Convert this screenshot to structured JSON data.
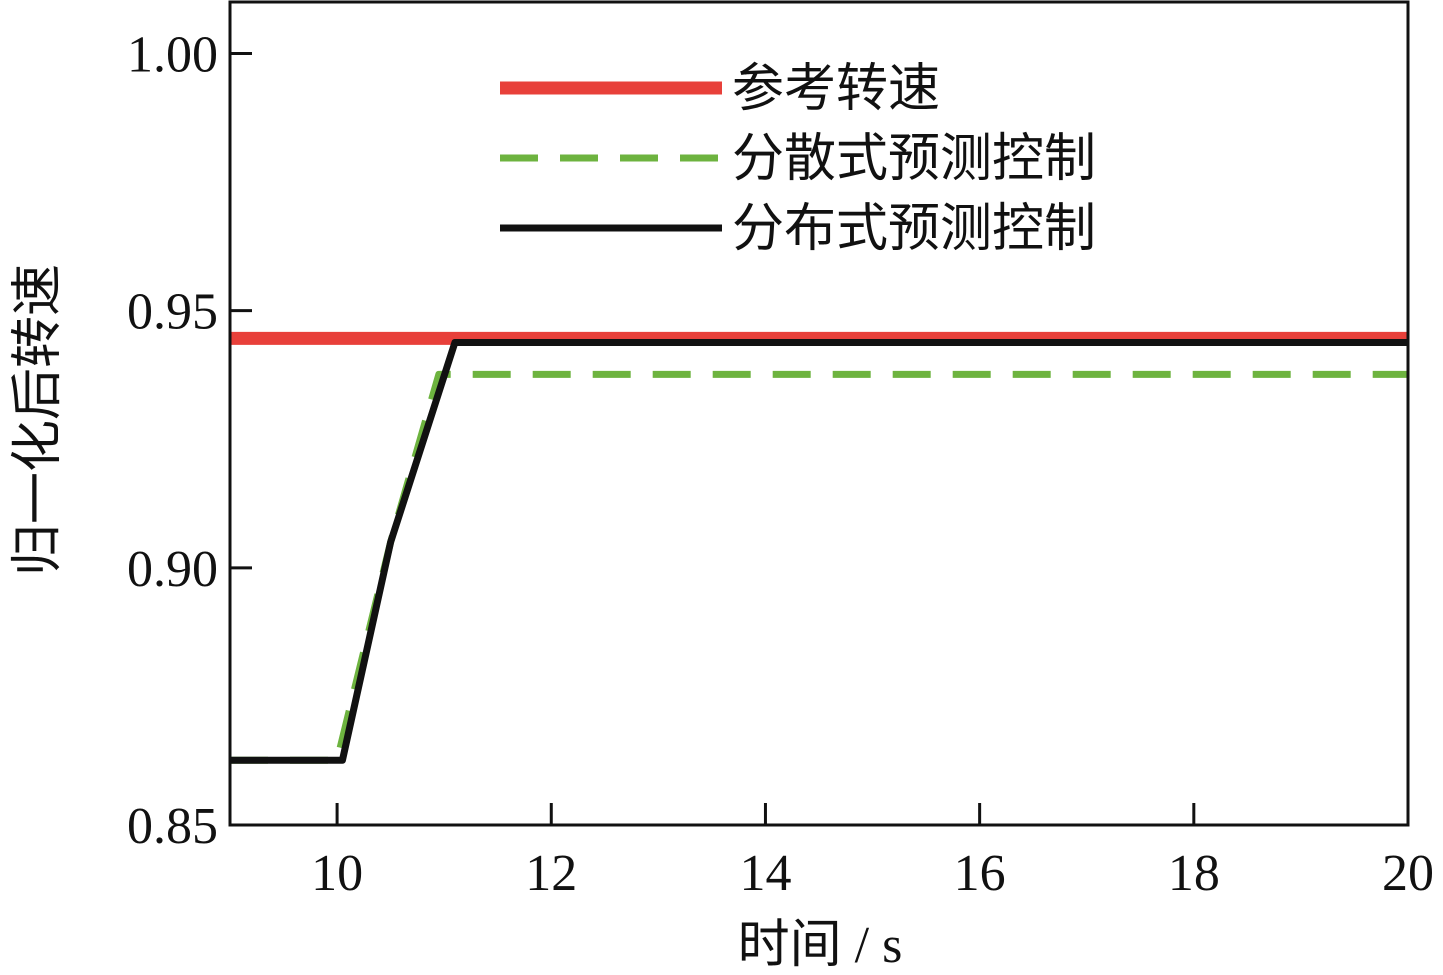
{
  "chart_data": {
    "type": "line",
    "xlabel": "时间 / s",
    "ylabel": "归一化后转速",
    "xlim": [
      9,
      20
    ],
    "ylim": [
      0.85,
      1.01
    ],
    "xticks": [
      10,
      12,
      14,
      16,
      18,
      20
    ],
    "yticks": [
      {
        "value": 0.85,
        "label": "0.85"
      },
      {
        "value": 0.9,
        "label": "0.90"
      },
      {
        "value": 0.95,
        "label": "0.95"
      },
      {
        "value": 1.0,
        "label": "1.00"
      }
    ],
    "legend": "upper center",
    "series": [
      {
        "name": "参考转速",
        "color": "#e8403a",
        "dash": "solid",
        "x": [
          9,
          20
        ],
        "values": [
          0.9446,
          0.9446
        ]
      },
      {
        "name": "分散式预测控制",
        "color": "#6db33f",
        "dash": "dashed",
        "x": [
          9,
          10,
          10.5,
          10.95,
          20
        ],
        "values": [
          0.8626,
          0.8626,
          0.905,
          0.9376,
          0.9376
        ]
      },
      {
        "name": "分布式预测控制",
        "color": "#111111",
        "dash": "solid",
        "x": [
          9,
          10.05,
          10.5,
          11.1,
          20
        ],
        "values": [
          0.8626,
          0.8626,
          0.905,
          0.9438,
          0.9438
        ]
      }
    ]
  }
}
